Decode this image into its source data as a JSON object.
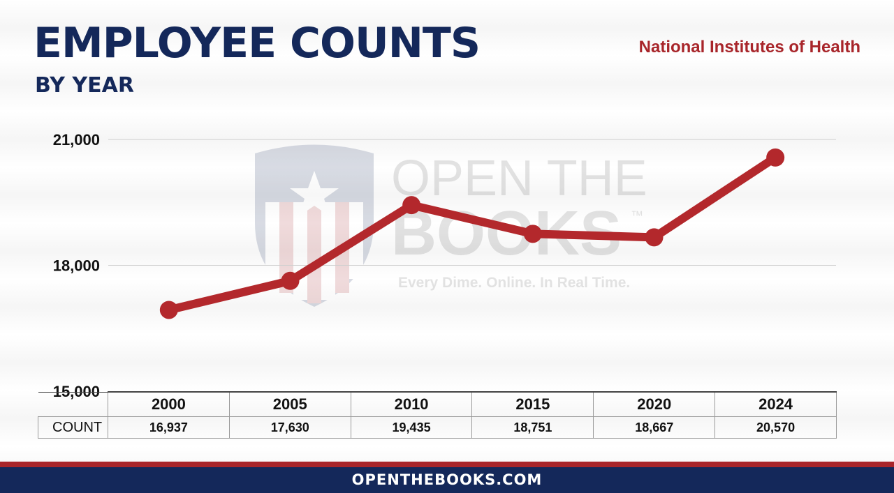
{
  "header": {
    "title": "EMPLOYEE COUNTS",
    "subtitle": "BY YEAR",
    "agency": "National Institutes of Health"
  },
  "watermark": {
    "line1": "OPEN THE",
    "line2": "BOOKS",
    "trademark": "™",
    "tagline": "Every Dime. Online. In Real Time."
  },
  "footer": {
    "text": "OPENTHEBOOKS.COM"
  },
  "table": {
    "row_label": "COUNT",
    "years": [
      "2000",
      "2005",
      "2010",
      "2015",
      "2020",
      "2024"
    ],
    "values": [
      "16,937",
      "17,630",
      "19,435",
      "18,751",
      "18,667",
      "20,570"
    ]
  },
  "colors": {
    "navy": "#14285a",
    "red": "#a8252a",
    "line": "#b3282c"
  },
  "chart_data": {
    "type": "line",
    "title": "EMPLOYEE COUNTS",
    "subtitle": "BY YEAR",
    "x": [
      "2000",
      "2005",
      "2010",
      "2015",
      "2020",
      "2024"
    ],
    "series": [
      {
        "values": [
          16937,
          17630,
          19435,
          18751,
          18667,
          20570
        ]
      }
    ],
    "ylim": [
      15000,
      21000
    ],
    "yticks": [
      15000,
      18000,
      21000
    ],
    "ytick_labels": [
      "15,000",
      "18,000",
      "21,000"
    ],
    "grid": true,
    "legend": "none"
  }
}
